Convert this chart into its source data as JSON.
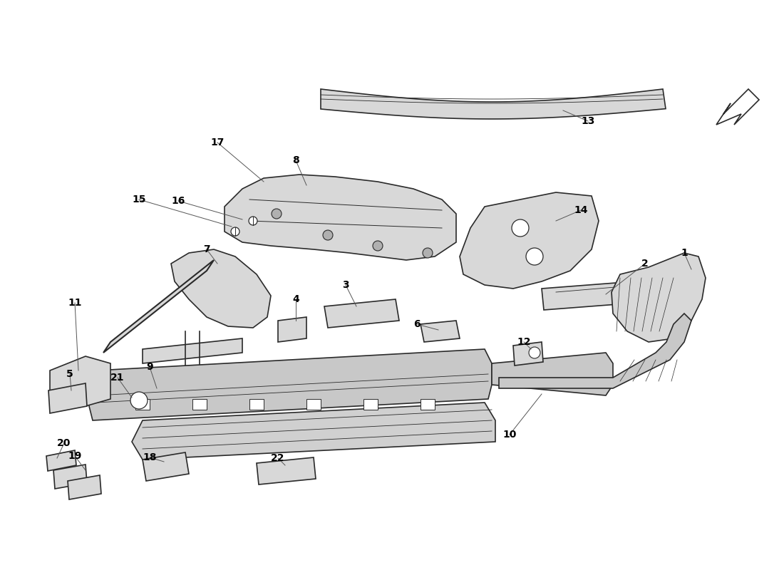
{
  "background_color": "#ffffff",
  "line_color": "#2a2a2a",
  "label_color": "#000000",
  "figsize": [
    11.0,
    8.0
  ],
  "dpi": 100,
  "label_data": [
    [
      "1",
      960,
      355,
      970,
      378
    ],
    [
      "2",
      905,
      370,
      850,
      413
    ],
    [
      "3",
      485,
      400,
      500,
      430
    ],
    [
      "4",
      415,
      420,
      415,
      450
    ],
    [
      "5",
      98,
      525,
      100,
      548
    ],
    [
      "6",
      585,
      455,
      615,
      463
    ],
    [
      "7",
      290,
      350,
      305,
      370
    ],
    [
      "8",
      415,
      225,
      430,
      260
    ],
    [
      "9",
      210,
      515,
      220,
      545
    ],
    [
      "10",
      715,
      610,
      760,
      553
    ],
    [
      "11",
      105,
      425,
      110,
      520
    ],
    [
      "12",
      735,
      480,
      745,
      490
    ],
    [
      "13",
      825,
      170,
      790,
      155
    ],
    [
      "14",
      815,
      295,
      780,
      310
    ],
    [
      "15",
      195,
      280,
      325,
      318
    ],
    [
      "16",
      250,
      282,
      340,
      308
    ],
    [
      "17",
      305,
      200,
      370,
      255
    ],
    [
      "18",
      210,
      642,
      230,
      648
    ],
    [
      "19",
      105,
      640,
      120,
      660
    ],
    [
      "20",
      90,
      622,
      80,
      643
    ],
    [
      "21",
      165,
      530,
      185,
      558
    ],
    [
      "22",
      390,
      643,
      400,
      653
    ]
  ],
  "fc_part": "#d8d8d8",
  "fc_dark": "#b0b0b0",
  "fc_rail": "#c8c8c8",
  "fc_floor": "#d0d0d0"
}
